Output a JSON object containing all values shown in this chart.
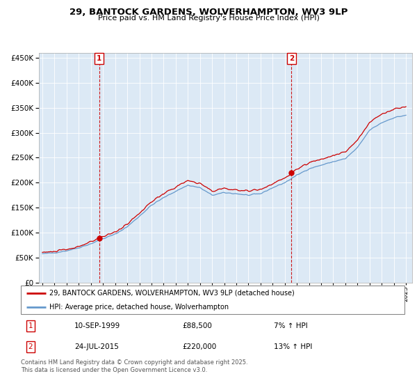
{
  "title": "29, BANTOCK GARDENS, WOLVERHAMPTON, WV3 9LP",
  "subtitle": "Price paid vs. HM Land Registry's House Price Index (HPI)",
  "legend_line1": "29, BANTOCK GARDENS, WOLVERHAMPTON, WV3 9LP (detached house)",
  "legend_line2": "HPI: Average price, detached house, Wolverhampton",
  "annotation1_date": "10-SEP-1999",
  "annotation1_price": "£88,500",
  "annotation1_hpi": "7% ↑ HPI",
  "annotation2_date": "24-JUL-2015",
  "annotation2_price": "£220,000",
  "annotation2_hpi": "13% ↑ HPI",
  "footer": "Contains HM Land Registry data © Crown copyright and database right 2025.\nThis data is licensed under the Open Government Licence v3.0.",
  "sale1_x": 1999.69,
  "sale1_y": 88500,
  "sale2_x": 2015.56,
  "sale2_y": 220000,
  "prop_color": "#cc0000",
  "hpi_color": "#6699cc",
  "vline_color": "#cc0000",
  "annotation_box_color": "#cc0000",
  "background_color": "#ffffff",
  "plot_bg_color": "#dce9f5",
  "grid_color": "#ffffff",
  "ylim": [
    0,
    460000
  ],
  "xlim": [
    1994.7,
    2025.5
  ],
  "yticks": [
    0,
    50000,
    100000,
    150000,
    200000,
    250000,
    300000,
    350000,
    400000,
    450000
  ]
}
